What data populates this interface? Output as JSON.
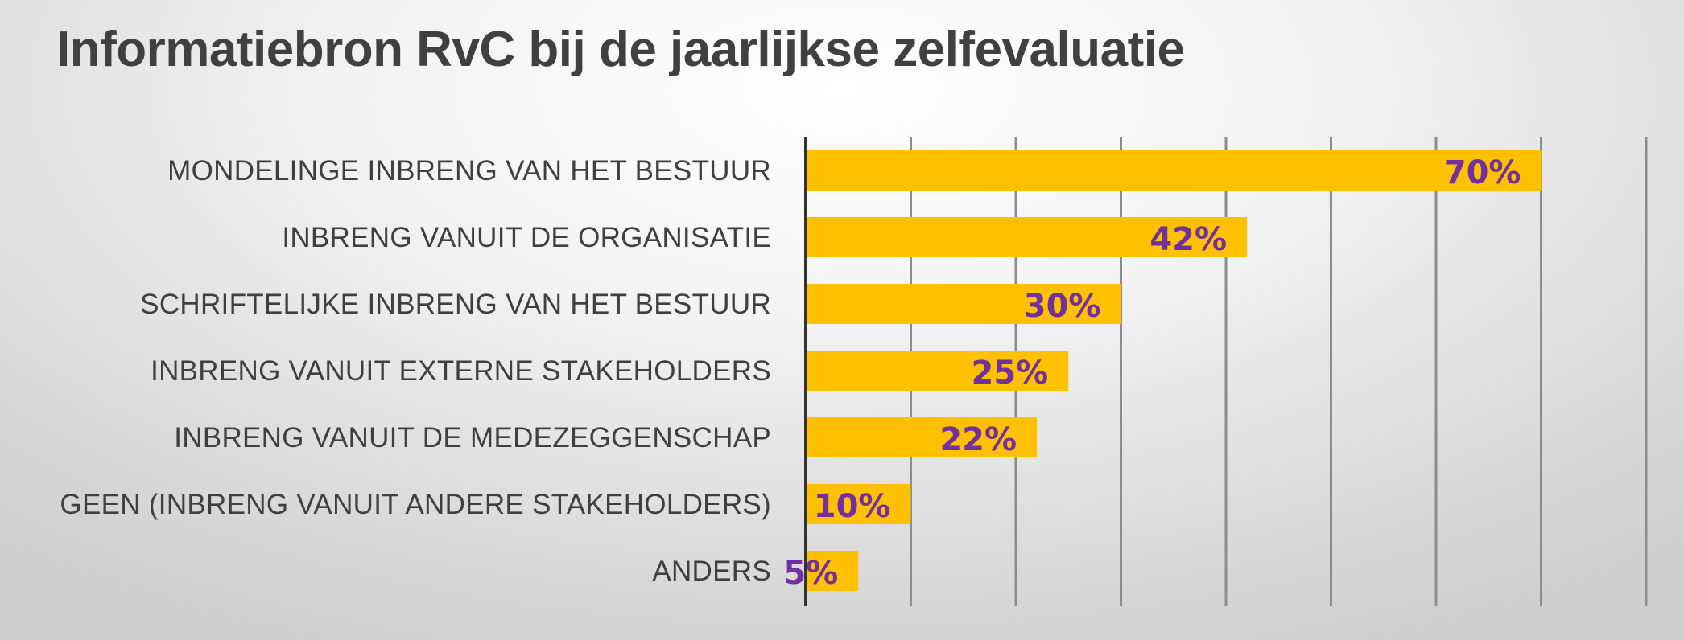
{
  "chart_data": {
    "type": "bar",
    "orientation": "horizontal",
    "title": "Informatiebron RvC bij de jaarlijkse zelfevaluatie",
    "xlabel": "",
    "ylabel": "",
    "xlim": [
      0,
      80
    ],
    "grid": true,
    "legend": "none",
    "categories": [
      "MONDELINGE INBRENG VAN HET BESTUUR",
      "INBRENG VANUIT DE ORGANISATIE",
      "SCHRIFTELIJKE INBRENG VAN HET BESTUUR",
      "INBRENG VANUIT EXTERNE STAKEHOLDERS",
      "INBRENG VANUIT DE MEDEZEGGENSCHAP",
      "GEEN (INBRENG VANUIT ANDERE STAKEHOLDERS)",
      "ANDERS"
    ],
    "values": [
      70,
      42,
      30,
      25,
      22,
      10,
      5
    ],
    "data_labels": [
      "70%",
      "42%",
      "30%",
      "25%",
      "22%",
      "10%",
      "5%"
    ],
    "colors": {
      "bar": "#ffc000",
      "data_label": "#7030a0",
      "axis": "#333333",
      "grid": "#8c8c8c",
      "category_label": "#3f3f3f",
      "title": "#404040"
    }
  }
}
